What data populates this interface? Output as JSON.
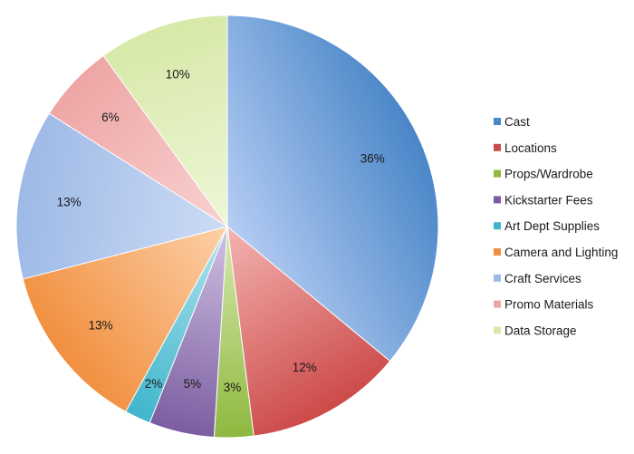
{
  "chart_data": {
    "type": "pie",
    "title": "",
    "legend_position": "right",
    "start_angle_deg": 0,
    "direction": "clockwise",
    "slices": [
      {
        "label": "Cast",
        "value": 36,
        "display": "36%",
        "color": "#4a86c8",
        "color_light": "#b5cdf3"
      },
      {
        "label": "Locations",
        "value": 12,
        "display": "12%",
        "color": "#cc4a48",
        "color_light": "#f3b4b2"
      },
      {
        "label": "Props/Wardrobe",
        "value": 3,
        "display": "3%",
        "color": "#8fb83f",
        "color_light": "#d6eab0"
      },
      {
        "label": "Kickstarter Fees",
        "value": 5,
        "display": "5%",
        "color": "#7b5da0",
        "color_light": "#d1c2e4"
      },
      {
        "label": "Art Dept Supplies",
        "value": 2,
        "display": "2%",
        "color": "#3fb5cc",
        "color_light": "#b4e4ee"
      },
      {
        "label": "Camera and Lighting",
        "value": 13,
        "display": "13%",
        "color": "#f18f3e",
        "color_light": "#fdd0a8"
      },
      {
        "label": "Craft Services",
        "value": 13,
        "display": "13%",
        "color": "#9db9e6",
        "color_light": "#cddcf5"
      },
      {
        "label": "Promo Materials",
        "value": 6,
        "display": "6%",
        "color": "#eea6a5",
        "color_light": "#f8d2d1"
      },
      {
        "label": "Data Storage",
        "value": 10,
        "display": "10%",
        "color": "#d7e9a8",
        "color_light": "#eef6d7"
      }
    ]
  }
}
